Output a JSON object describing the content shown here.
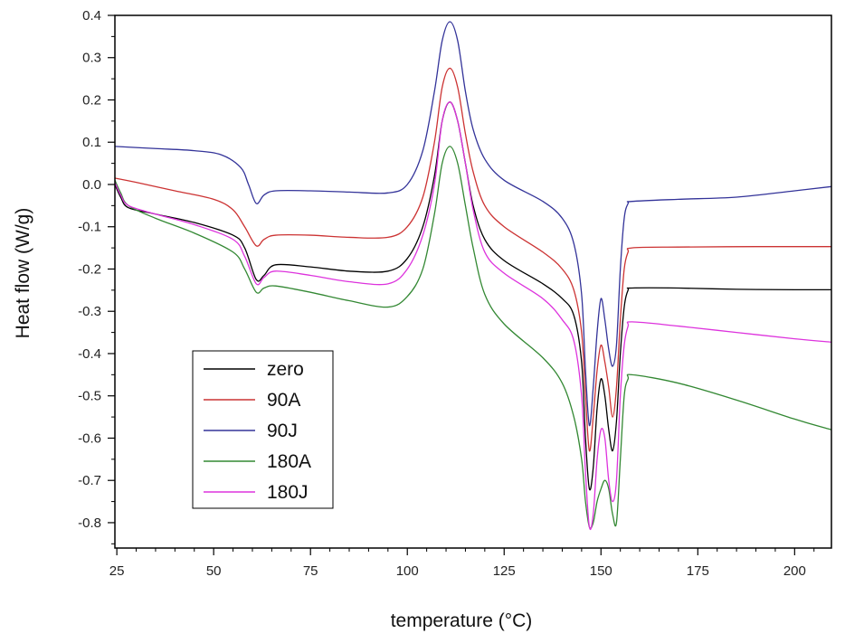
{
  "chart_data": {
    "type": "line",
    "title": "",
    "xlabel": "temperature (°C)",
    "ylabel": "Heat flow (W/g)",
    "xlim": [
      24.5,
      209.5
    ],
    "ylim": [
      -0.86,
      0.4
    ],
    "xticks": [
      25,
      50,
      75,
      100,
      125,
      150,
      175,
      200
    ],
    "xtick_labels": [
      "25",
      "50",
      "75",
      "100",
      "125",
      "150",
      "175",
      "200"
    ],
    "yticks": [
      0.4,
      0.3,
      0.2,
      0.1,
      0.0,
      -0.1,
      -0.2,
      -0.3,
      -0.4,
      -0.5,
      -0.6,
      -0.7,
      -0.8
    ],
    "ytick_labels": [
      "0.4",
      "0.3",
      "0.2",
      "0.1",
      "0.0",
      "-0.1",
      "-0.2",
      "-0.3",
      "-0.4",
      "-0.5",
      "-0.6",
      "-0.7",
      "-0.8"
    ],
    "grid": false,
    "legend_position": "bottom-left",
    "series": [
      {
        "name": "zero",
        "color": "#000000",
        "points": [
          [
            24.5,
            0.0
          ],
          [
            26,
            -0.03
          ],
          [
            28,
            -0.055
          ],
          [
            35,
            -0.07
          ],
          [
            45,
            -0.09
          ],
          [
            55,
            -0.12
          ],
          [
            58,
            -0.15
          ],
          [
            61,
            -0.225
          ],
          [
            63,
            -0.215
          ],
          [
            66,
            -0.19
          ],
          [
            75,
            -0.195
          ],
          [
            85,
            -0.205
          ],
          [
            95,
            -0.205
          ],
          [
            100,
            -0.175
          ],
          [
            104,
            -0.1
          ],
          [
            107,
            0.02
          ],
          [
            109,
            0.15
          ],
          [
            111,
            0.195
          ],
          [
            113,
            0.15
          ],
          [
            115,
            0.05
          ],
          [
            117,
            -0.05
          ],
          [
            120,
            -0.13
          ],
          [
            125,
            -0.18
          ],
          [
            135,
            -0.235
          ],
          [
            140,
            -0.27
          ],
          [
            143,
            -0.31
          ],
          [
            145,
            -0.42
          ],
          [
            146,
            -0.6
          ],
          [
            147,
            -0.72
          ],
          [
            148,
            -0.67
          ],
          [
            149,
            -0.53
          ],
          [
            150,
            -0.46
          ],
          [
            151,
            -0.5
          ],
          [
            152,
            -0.58
          ],
          [
            153,
            -0.63
          ],
          [
            154,
            -0.56
          ],
          [
            155,
            -0.4
          ],
          [
            156,
            -0.29
          ],
          [
            157,
            -0.25
          ],
          [
            158,
            -0.245
          ],
          [
            170,
            -0.245
          ],
          [
            185,
            -0.248
          ],
          [
            200,
            -0.249
          ],
          [
            209.5,
            -0.249
          ]
        ]
      },
      {
        "name": "90A",
        "color": "#cc3333",
        "points": [
          [
            24.5,
            0.015
          ],
          [
            30,
            0.005
          ],
          [
            40,
            -0.015
          ],
          [
            50,
            -0.035
          ],
          [
            55,
            -0.06
          ],
          [
            58,
            -0.1
          ],
          [
            61,
            -0.145
          ],
          [
            63,
            -0.13
          ],
          [
            66,
            -0.12
          ],
          [
            75,
            -0.12
          ],
          [
            85,
            -0.125
          ],
          [
            95,
            -0.125
          ],
          [
            100,
            -0.1
          ],
          [
            104,
            -0.03
          ],
          [
            107,
            0.1
          ],
          [
            109,
            0.23
          ],
          [
            111,
            0.275
          ],
          [
            113,
            0.23
          ],
          [
            115,
            0.12
          ],
          [
            117,
            0.03
          ],
          [
            120,
            -0.05
          ],
          [
            125,
            -0.1
          ],
          [
            135,
            -0.16
          ],
          [
            140,
            -0.2
          ],
          [
            143,
            -0.25
          ],
          [
            145,
            -0.35
          ],
          [
            146,
            -0.5
          ],
          [
            147,
            -0.63
          ],
          [
            148,
            -0.55
          ],
          [
            149,
            -0.44
          ],
          [
            150,
            -0.38
          ],
          [
            151,
            -0.42
          ],
          [
            152,
            -0.48
          ],
          [
            153,
            -0.55
          ],
          [
            154,
            -0.48
          ],
          [
            155,
            -0.32
          ],
          [
            156,
            -0.2
          ],
          [
            157,
            -0.16
          ],
          [
            158,
            -0.15
          ],
          [
            170,
            -0.148
          ],
          [
            190,
            -0.147
          ],
          [
            209.5,
            -0.147
          ]
        ]
      },
      {
        "name": "90J",
        "color": "#333399",
        "points": [
          [
            24.5,
            0.09
          ],
          [
            35,
            0.085
          ],
          [
            45,
            0.08
          ],
          [
            52,
            0.07
          ],
          [
            57,
            0.04
          ],
          [
            59,
            0.0
          ],
          [
            61,
            -0.045
          ],
          [
            63,
            -0.025
          ],
          [
            66,
            -0.015
          ],
          [
            75,
            -0.015
          ],
          [
            85,
            -0.018
          ],
          [
            95,
            -0.02
          ],
          [
            100,
            0.0
          ],
          [
            104,
            0.08
          ],
          [
            107,
            0.22
          ],
          [
            109,
            0.34
          ],
          [
            111,
            0.385
          ],
          [
            113,
            0.34
          ],
          [
            115,
            0.22
          ],
          [
            117,
            0.13
          ],
          [
            120,
            0.06
          ],
          [
            125,
            0.01
          ],
          [
            135,
            -0.04
          ],
          [
            140,
            -0.08
          ],
          [
            143,
            -0.14
          ],
          [
            145,
            -0.26
          ],
          [
            146,
            -0.44
          ],
          [
            147,
            -0.57
          ],
          [
            148,
            -0.48
          ],
          [
            149,
            -0.35
          ],
          [
            150,
            -0.27
          ],
          [
            151,
            -0.32
          ],
          [
            152,
            -0.39
          ],
          [
            153,
            -0.43
          ],
          [
            154,
            -0.38
          ],
          [
            155,
            -0.2
          ],
          [
            156,
            -0.08
          ],
          [
            157,
            -0.045
          ],
          [
            158,
            -0.04
          ],
          [
            170,
            -0.035
          ],
          [
            185,
            -0.03
          ],
          [
            200,
            -0.015
          ],
          [
            209.5,
            -0.005
          ]
        ]
      },
      {
        "name": "180A",
        "color": "#338833",
        "points": [
          [
            24.5,
            0.01
          ],
          [
            26,
            -0.02
          ],
          [
            28,
            -0.05
          ],
          [
            35,
            -0.08
          ],
          [
            45,
            -0.115
          ],
          [
            55,
            -0.16
          ],
          [
            58,
            -0.2
          ],
          [
            61,
            -0.255
          ],
          [
            63,
            -0.245
          ],
          [
            66,
            -0.24
          ],
          [
            75,
            -0.255
          ],
          [
            85,
            -0.275
          ],
          [
            95,
            -0.29
          ],
          [
            100,
            -0.265
          ],
          [
            104,
            -0.2
          ],
          [
            107,
            -0.07
          ],
          [
            109,
            0.05
          ],
          [
            111,
            0.09
          ],
          [
            113,
            0.05
          ],
          [
            115,
            -0.05
          ],
          [
            117,
            -0.15
          ],
          [
            120,
            -0.26
          ],
          [
            125,
            -0.33
          ],
          [
            135,
            -0.41
          ],
          [
            140,
            -0.47
          ],
          [
            143,
            -0.55
          ],
          [
            145,
            -0.65
          ],
          [
            146,
            -0.75
          ],
          [
            147,
            -0.81
          ],
          [
            148,
            -0.8
          ],
          [
            149,
            -0.75
          ],
          [
            150,
            -0.72
          ],
          [
            151,
            -0.7
          ],
          [
            152,
            -0.72
          ],
          [
            153,
            -0.78
          ],
          [
            154,
            -0.8
          ],
          [
            155,
            -0.65
          ],
          [
            156,
            -0.5
          ],
          [
            157,
            -0.46
          ],
          [
            158,
            -0.45
          ],
          [
            170,
            -0.47
          ],
          [
            185,
            -0.51
          ],
          [
            200,
            -0.555
          ],
          [
            209.5,
            -0.58
          ]
        ]
      },
      {
        "name": "180J",
        "color": "#dd33dd",
        "points": [
          [
            24.5,
            0.005
          ],
          [
            26,
            -0.025
          ],
          [
            28,
            -0.05
          ],
          [
            35,
            -0.07
          ],
          [
            45,
            -0.095
          ],
          [
            55,
            -0.13
          ],
          [
            58,
            -0.17
          ],
          [
            61,
            -0.235
          ],
          [
            63,
            -0.22
          ],
          [
            66,
            -0.205
          ],
          [
            75,
            -0.215
          ],
          [
            85,
            -0.23
          ],
          [
            95,
            -0.235
          ],
          [
            100,
            -0.2
          ],
          [
            104,
            -0.12
          ],
          [
            107,
            0.0
          ],
          [
            109,
            0.15
          ],
          [
            111,
            0.195
          ],
          [
            113,
            0.15
          ],
          [
            115,
            0.05
          ],
          [
            117,
            -0.06
          ],
          [
            120,
            -0.16
          ],
          [
            125,
            -0.21
          ],
          [
            135,
            -0.27
          ],
          [
            140,
            -0.32
          ],
          [
            143,
            -0.37
          ],
          [
            145,
            -0.5
          ],
          [
            146,
            -0.68
          ],
          [
            147,
            -0.81
          ],
          [
            148,
            -0.78
          ],
          [
            149,
            -0.65
          ],
          [
            150,
            -0.58
          ],
          [
            151,
            -0.6
          ],
          [
            152,
            -0.7
          ],
          [
            153,
            -0.75
          ],
          [
            154,
            -0.7
          ],
          [
            155,
            -0.5
          ],
          [
            156,
            -0.38
          ],
          [
            157,
            -0.335
          ],
          [
            158,
            -0.325
          ],
          [
            170,
            -0.335
          ],
          [
            185,
            -0.35
          ],
          [
            200,
            -0.365
          ],
          [
            209.5,
            -0.373
          ]
        ]
      }
    ]
  }
}
